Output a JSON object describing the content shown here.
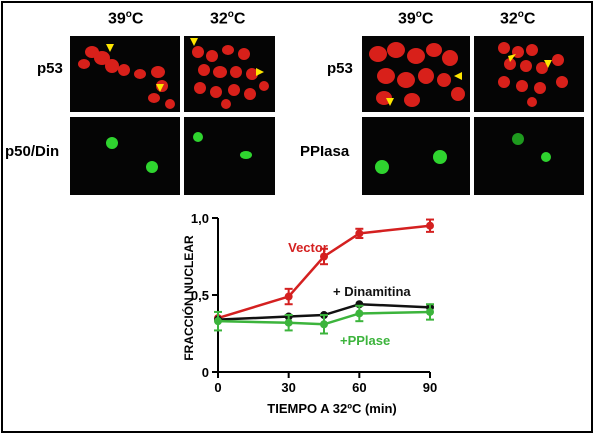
{
  "figure": {
    "left_block": {
      "col_headers": [
        "39",
        "32"
      ],
      "row_labels": [
        "p53",
        "p50/Din"
      ]
    },
    "right_block": {
      "col_headers": [
        "39",
        "32"
      ],
      "row_labels": [
        "p53",
        "PPIasa"
      ]
    },
    "degree_unit": "C",
    "degree_symbol": "o"
  },
  "colors": {
    "vector": "#d42020",
    "dinamitina": "#111111",
    "pplase": "#3cb43c",
    "cell_red": "#e8231c",
    "cell_green": "#33dd33",
    "arrow": "#ffe600"
  },
  "chart_data": {
    "type": "line",
    "xlabel": "TIEMPO A 32ºC (min)",
    "ylabel": "FRACCIÓN NUCLEAR",
    "x": [
      0,
      30,
      45,
      60,
      90
    ],
    "xticks": [
      "0",
      "30",
      "60",
      "90"
    ],
    "yticks": [
      "0",
      "0,5",
      "1,0"
    ],
    "xlim": [
      0,
      90
    ],
    "ylim": [
      0,
      1.0
    ],
    "series": [
      {
        "name": "Vector",
        "values": [
          0.35,
          0.49,
          0.75,
          0.9,
          0.95
        ],
        "err": [
          0,
          0.05,
          0.05,
          0.03,
          0.04
        ]
      },
      {
        "name": "+ Dinamitina",
        "values": [
          0.34,
          0.36,
          0.37,
          0.44,
          0.42
        ],
        "err": [
          0,
          0,
          0,
          0,
          0
        ]
      },
      {
        "name": "+PPlase",
        "values": [
          0.33,
          0.32,
          0.31,
          0.38,
          0.39
        ],
        "err": [
          0.06,
          0.05,
          0.06,
          0.05,
          0.05
        ]
      }
    ]
  }
}
